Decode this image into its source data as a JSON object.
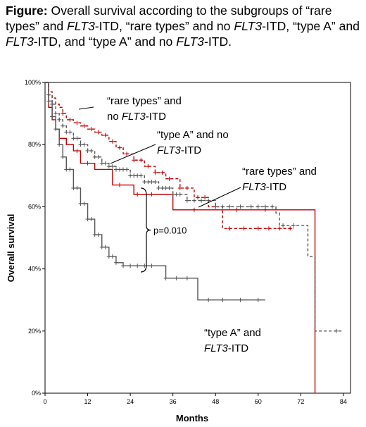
{
  "caption": {
    "lead": "Figure:",
    "parts": [
      " Overall survival according to the subgroups of “rare types” and ",
      "FLT3",
      "-ITD, “rare types” and no ",
      "FLT3",
      "-ITD, “type A” and ",
      "FLT3",
      "-ITD, and “type A” and no ",
      "FLT3",
      "-ITD."
    ]
  },
  "chart_data": {
    "type": "line",
    "subtype": "kaplan-meier",
    "xlabel": "Months",
    "ylabel": "Overall survival",
    "xlim": [
      0,
      86
    ],
    "ylim": [
      0,
      100
    ],
    "x_ticks": [
      "0",
      "12",
      "24",
      "36",
      "48",
      "60",
      "72",
      "84"
    ],
    "x_tick_values": [
      0,
      12,
      24,
      36,
      48,
      60,
      72,
      84
    ],
    "y_ticks": [
      "0%",
      "20%",
      "40%",
      "60%",
      "80%",
      "100%"
    ],
    "y_tick_values": [
      0,
      20,
      40,
      60,
      80,
      100
    ],
    "grid": false,
    "legend": "none",
    "series": [
      {
        "color": "#c00000",
        "dash": "none",
        "x": [
          0,
          1,
          2,
          3,
          4,
          6,
          8,
          10,
          14,
          19,
          25,
          36,
          76,
          76
        ],
        "y": [
          100,
          92,
          88,
          85,
          82,
          80,
          78,
          74,
          72,
          67,
          64,
          59,
          59,
          0
        ],
        "censor_x": [
          9,
          12,
          21,
          26,
          30,
          42,
          54,
          62
        ]
      },
      {
        "color": "#c00000",
        "dash": "4,3",
        "x": [
          0,
          1,
          2,
          3,
          4,
          5,
          6,
          8,
          10,
          12,
          14,
          16,
          18,
          20,
          22,
          25,
          28,
          31,
          34,
          38,
          42,
          46,
          50,
          60,
          70
        ],
        "y": [
          100,
          97,
          95,
          93,
          92,
          90,
          88,
          87,
          86,
          85,
          84,
          83,
          81,
          79,
          77,
          75,
          73,
          71,
          69,
          66,
          63,
          60,
          53,
          53,
          53
        ],
        "censor_x": [
          5,
          7,
          9,
          11,
          13,
          15,
          17,
          19,
          21,
          23,
          25,
          27,
          29,
          31,
          33,
          35,
          38,
          40,
          43,
          45,
          48,
          52,
          56,
          60,
          63,
          66,
          69
        ]
      },
      {
        "color": "#555555",
        "dash": "none",
        "x": [
          0,
          1,
          2,
          3,
          4,
          5,
          6,
          8,
          10,
          12,
          14,
          16,
          18,
          20,
          22,
          26,
          30,
          34,
          43,
          62
        ],
        "y": [
          100,
          94,
          89,
          85,
          80,
          76,
          72,
          66,
          61,
          56,
          51,
          47,
          44,
          42,
          41,
          41,
          41,
          37,
          30,
          30
        ],
        "censor_x": [
          1,
          2,
          3,
          4,
          5,
          6,
          7,
          8,
          9,
          10,
          11,
          12,
          13,
          14,
          15,
          16,
          17,
          18,
          19,
          20,
          22,
          24,
          26,
          28,
          30,
          34,
          37,
          40,
          46,
          50,
          55,
          60
        ]
      },
      {
        "color": "#555555",
        "dash": "4,3",
        "x": [
          0,
          1,
          2,
          3,
          4,
          5,
          6,
          8,
          10,
          12,
          14,
          16,
          18,
          20,
          24,
          28,
          32,
          36,
          40,
          48,
          60,
          65,
          66,
          70,
          74,
          76,
          84
        ],
        "y": [
          100,
          96,
          93,
          90,
          88,
          86,
          84,
          82,
          80,
          78,
          76,
          74,
          73,
          72,
          70,
          68,
          66,
          64,
          62,
          60,
          60,
          58,
          54,
          54,
          44,
          20,
          20
        ],
        "censor_x": [
          1,
          2,
          3,
          4,
          5,
          6,
          7,
          8,
          9,
          10,
          11,
          12,
          13,
          14,
          15,
          16,
          17,
          18,
          19,
          20,
          21,
          22,
          23,
          24,
          25,
          26,
          27,
          28,
          29,
          30,
          31,
          32,
          33,
          34,
          35,
          36,
          37,
          38,
          40,
          42,
          44,
          46,
          48,
          50,
          52,
          55,
          58,
          60,
          62,
          64,
          67,
          70,
          82
        ]
      }
    ],
    "annotations": [
      {
        "lines": [
          [
            "“rare types” and",
            ""
          ],
          [
            "no ",
            "FLT3",
            "-ITD"
          ]
        ]
      },
      {
        "lines": [
          [
            "“type A” and no",
            ""
          ],
          [
            "",
            "FLT3",
            "-ITD"
          ]
        ]
      },
      {
        "lines": [
          [
            "“rare types” and",
            ""
          ],
          [
            "",
            "FLT3",
            "-ITD"
          ]
        ]
      },
      {
        "lines": [
          [
            "“type A” and",
            ""
          ],
          [
            "",
            "FLT3",
            "-ITD"
          ]
        ]
      }
    ],
    "p_value_label": "p=0.010"
  }
}
